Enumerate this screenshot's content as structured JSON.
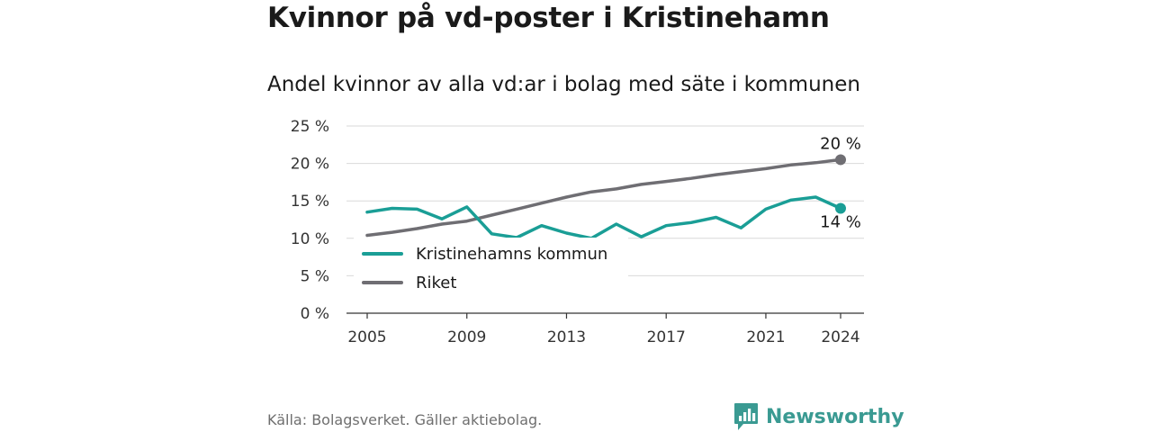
{
  "chart_data": {
    "type": "line",
    "title": "Kvinnor på vd-poster i Kristinehamn",
    "subtitle": "Andel kvinnor av alla vd:ar i bolag med säte i kommunen",
    "xlabel": "",
    "ylabel": "",
    "x": [
      2005,
      2006,
      2007,
      2008,
      2009,
      2010,
      2011,
      2012,
      2013,
      2014,
      2015,
      2016,
      2017,
      2018,
      2019,
      2020,
      2021,
      2022,
      2023,
      2024
    ],
    "x_ticks": [
      2005,
      2009,
      2013,
      2017,
      2021,
      2024
    ],
    "xlim": [
      2005,
      2024
    ],
    "y_ticks": [
      "0 %",
      "5 %",
      "10 %",
      "15 %",
      "20 %",
      "25 %"
    ],
    "ylim": [
      0,
      25
    ],
    "grid": true,
    "legend": "lower-left",
    "series": [
      {
        "name": "Kristinehamns kommun",
        "color": "#1a9e96",
        "values": [
          13.5,
          14.0,
          13.9,
          12.6,
          14.2,
          10.6,
          10.1,
          11.7,
          10.7,
          10.0,
          11.9,
          10.2,
          11.7,
          12.1,
          12.8,
          11.4,
          13.9,
          15.1,
          15.5,
          14.0
        ],
        "end_label": "14 %"
      },
      {
        "name": "Riket",
        "color": "#6f6e73",
        "values": [
          10.4,
          10.8,
          11.3,
          11.9,
          12.3,
          13.1,
          13.9,
          14.7,
          15.5,
          16.2,
          16.6,
          17.2,
          17.6,
          18.0,
          18.5,
          18.9,
          19.3,
          19.8,
          20.1,
          20.5
        ],
        "end_label": "20 %"
      }
    ]
  },
  "footer": {
    "source": "Källa: Bolagsverket. Gäller aktiebolag.",
    "brand": "Newsworthy",
    "brand_color": "#3a9a92",
    "brand_icon": "bar-chart-speech-bubble-icon"
  }
}
